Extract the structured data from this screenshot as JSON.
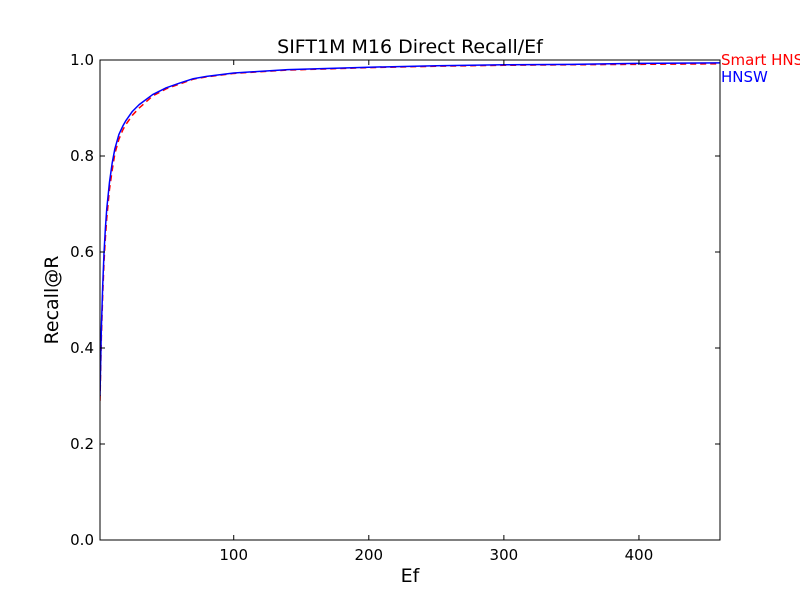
{
  "chart_data": {
    "type": "line",
    "title": "SIFT1M M16 Direct Recall/Ef",
    "xlabel": "Ef",
    "ylabel": "Recall@R",
    "xlim": [
      1,
      460
    ],
    "ylim": [
      0.0,
      1.0
    ],
    "xticks": [
      100,
      200,
      300,
      400
    ],
    "yticks": [
      0.0,
      0.2,
      0.4,
      0.6,
      0.8,
      1.0
    ],
    "xtick_labels": [
      "100",
      "200",
      "300",
      "400"
    ],
    "ytick_labels": [
      "0.0",
      "0.2",
      "0.4",
      "0.6",
      "0.8",
      "1.0"
    ],
    "grid": false,
    "series": [
      {
        "name": "Smart HNSW",
        "color": "#ff0000",
        "style": "dashed",
        "x": [
          1,
          2,
          3,
          4,
          5,
          6,
          8,
          10,
          12,
          15,
          18,
          20,
          25,
          30,
          40,
          50,
          60,
          70,
          80,
          100,
          140,
          200,
          250,
          300,
          350,
          400,
          460
        ],
        "y": [
          0.29,
          0.42,
          0.51,
          0.58,
          0.63,
          0.67,
          0.73,
          0.77,
          0.805,
          0.835,
          0.855,
          0.865,
          0.885,
          0.9,
          0.925,
          0.94,
          0.95,
          0.96,
          0.965,
          0.972,
          0.979,
          0.984,
          0.987,
          0.989,
          0.99,
          0.991,
          0.992
        ]
      },
      {
        "name": "HNSW",
        "color": "#0000ff",
        "style": "solid",
        "x": [
          1,
          2,
          3,
          4,
          5,
          6,
          8,
          10,
          12,
          15,
          18,
          20,
          25,
          30,
          40,
          50,
          60,
          70,
          80,
          100,
          140,
          200,
          250,
          300,
          350,
          400,
          460
        ],
        "y": [
          0.3,
          0.44,
          0.53,
          0.6,
          0.65,
          0.69,
          0.745,
          0.785,
          0.815,
          0.845,
          0.863,
          0.873,
          0.893,
          0.907,
          0.928,
          0.942,
          0.952,
          0.961,
          0.966,
          0.973,
          0.98,
          0.985,
          0.988,
          0.99,
          0.991,
          0.993,
          0.994
        ]
      }
    ]
  }
}
